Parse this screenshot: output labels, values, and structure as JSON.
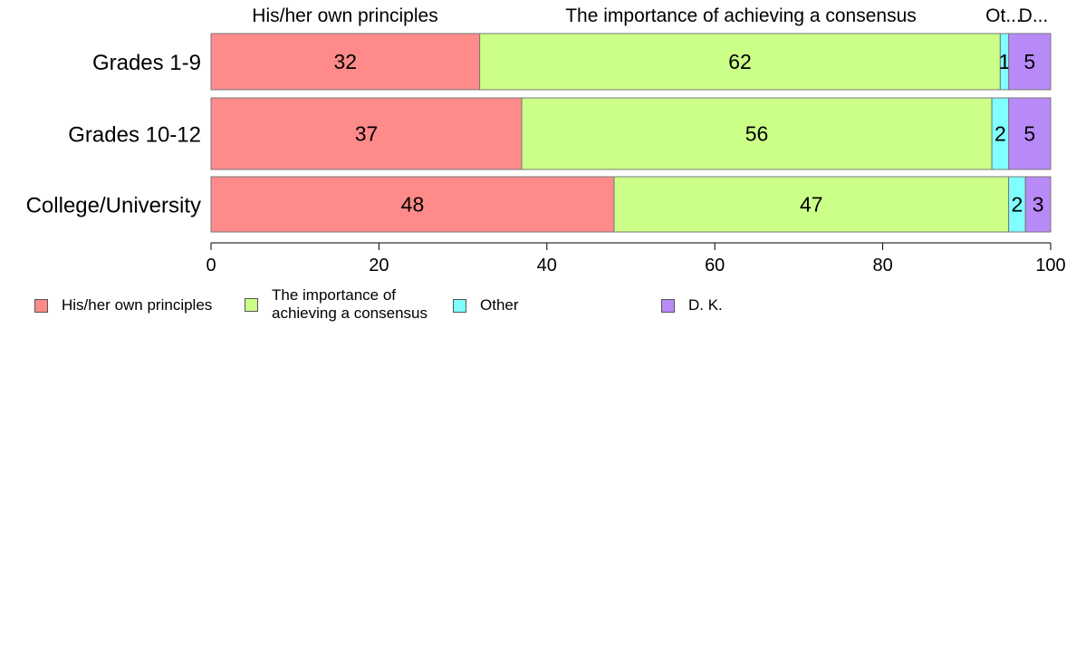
{
  "chart_data": {
    "type": "bar",
    "orientation": "horizontal",
    "stacked": true,
    "categories": [
      "Grades 1-9",
      "Grades 10-12",
      "College/University"
    ],
    "series": [
      {
        "name": "His/her own principles",
        "color": "#ff8a8a",
        "values": [
          32,
          37,
          48
        ],
        "value_labels": [
          "32",
          "37",
          "48"
        ]
      },
      {
        "name": "The importance of achieving a consensus",
        "color": "#ccff88",
        "values": [
          62,
          56,
          47
        ],
        "value_labels": [
          "62",
          "56",
          "47"
        ]
      },
      {
        "name": "Other",
        "color": "#80ffff",
        "values": [
          1,
          2,
          2
        ],
        "value_labels": [
          "1",
          "2",
          "2"
        ]
      },
      {
        "name": "D. K.",
        "color": "#b88af8",
        "values": [
          5,
          5,
          3
        ],
        "value_labels": [
          "5",
          "5",
          "3"
        ]
      }
    ],
    "top_labels": [
      "His/her own principles",
      "The importance of achieving a consensus",
      "Ot...",
      "D..."
    ],
    "legend": [
      {
        "label_lines": [
          "His/her own principles"
        ],
        "color": "#ff8a8a"
      },
      {
        "label_lines": [
          "The importance of",
          "achieving a consensus"
        ],
        "color": "#ccff88"
      },
      {
        "label_lines": [
          "Other"
        ],
        "color": "#80ffff"
      },
      {
        "label_lines": [
          "D. K."
        ],
        "color": "#b88af8"
      }
    ],
    "xlim": [
      0,
      100
    ],
    "xticks": [
      0,
      20,
      40,
      60,
      80,
      100
    ],
    "grid": false,
    "legend_position": "bottom-left"
  }
}
